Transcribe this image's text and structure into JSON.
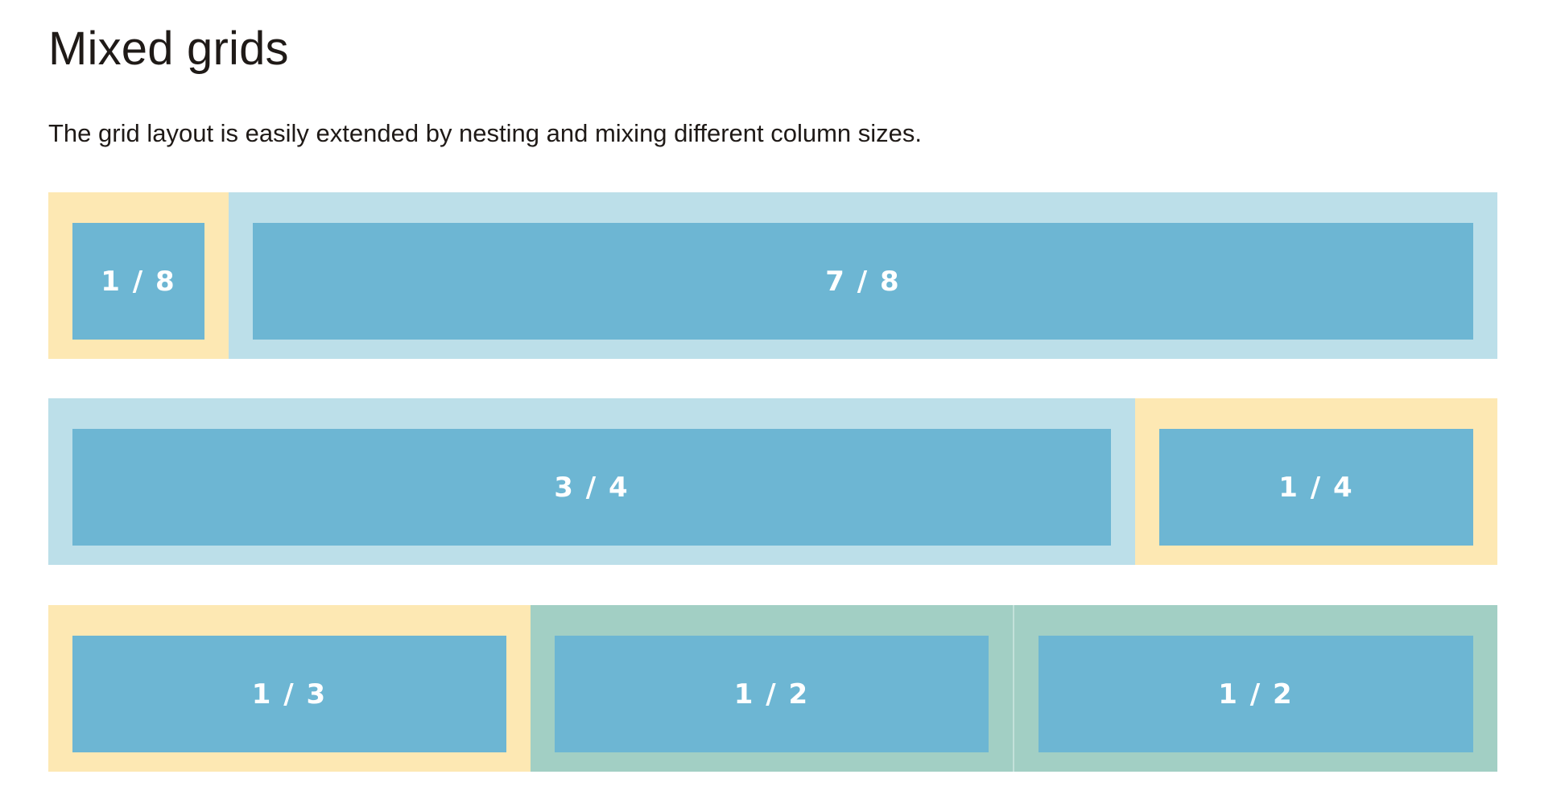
{
  "header": {
    "title": "Mixed grids",
    "lead": "The grid layout is easily extended by nesting and mixing different column sizes."
  },
  "colors": {
    "yellow": "#fde8b3",
    "light_blue": "#bcdfe9",
    "green": "#a2cfc4",
    "cell_blue": "#6db6d3"
  },
  "rows": [
    {
      "cells": [
        {
          "label": "1 / 8",
          "outer_color": "yellow",
          "fraction": 0.125
        },
        {
          "label": "7 / 8",
          "outer_color": "light_blue",
          "fraction": 0.875
        }
      ]
    },
    {
      "cells": [
        {
          "label": "3 / 4",
          "outer_color": "light_blue",
          "fraction": 0.75
        },
        {
          "label": "1 / 4",
          "outer_color": "yellow",
          "fraction": 0.25
        }
      ]
    },
    {
      "cells": [
        {
          "label": "1 / 3",
          "outer_color": "yellow",
          "fraction": 0.3333
        },
        {
          "label": "1 / 2",
          "outer_color": "green",
          "fraction": 0.3333
        },
        {
          "label": "1 / 2",
          "outer_color": "green",
          "fraction": 0.3334
        }
      ]
    }
  ]
}
